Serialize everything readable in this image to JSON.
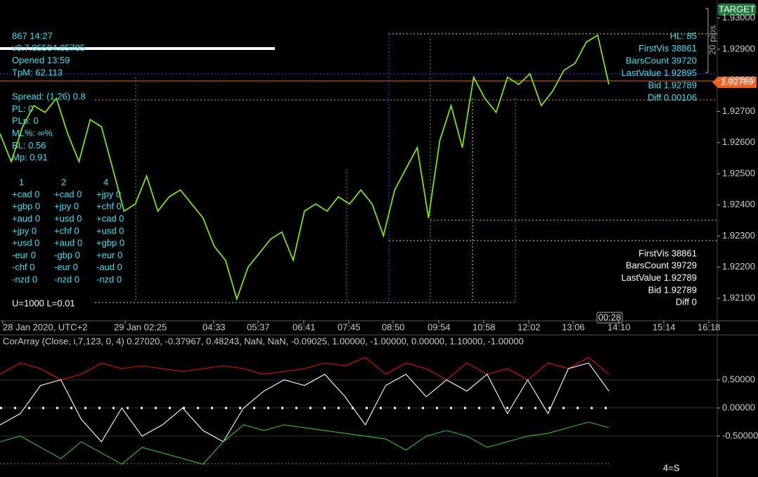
{
  "info_panel": [
    "867    14:27",
    "v0.7.05504.05785",
    "Opened 13:59",
    "TpM: 62.113",
    "Spread: (1.26) 0.8",
    "PL: 0",
    "PLp: 0",
    "ML%: ∞%",
    "BL: 0.56",
    "Mp: 0.91"
  ],
  "currency_columns": [
    {
      "header": "1",
      "items": [
        "+cad 0",
        "+gbp 0",
        "+aud 0",
        "+jpy 0",
        "+usd 0",
        "-eur 0",
        "-chf 0",
        "-nzd 0"
      ]
    },
    {
      "header": "2",
      "items": [
        "+cad 0",
        "+jpy 0",
        "+usd 0",
        "+chf 0",
        "+aud 0",
        "-gbp 0",
        "-eur 0",
        "-nzd 0"
      ]
    },
    {
      "header": "4",
      "items": [
        "+jpy 0",
        "+chf 0",
        "+cad 0",
        "+usd 0",
        "+gbp 0",
        "+eur 0",
        "-aud 0",
        "-nzd 0"
      ]
    }
  ],
  "footer_note": "U=1000 L=0.01",
  "stats_top": [
    "HL: 85",
    "FirstVis 38861",
    "BarsCount 39720",
    "LastValue 1.92895",
    "Bid 1.92789",
    "Diff 0.00106"
  ],
  "stats_bottom": [
    "FirstVis 38861",
    "BarsCount 39729",
    "LastValue 1.92789",
    "Bid 1.92789",
    "Diff 0"
  ],
  "target_label": "TARGET",
  "price_tag": "1.92789",
  "pips_label": "20 pips",
  "time_tag": "00:28",
  "corner_label": "4=S",
  "chart_data": [
    {
      "type": "line",
      "time_labels": [
        "28 Jan 2020, UTC+2",
        "29 Jan 02:25",
        "04:33",
        "05:37",
        "06:41",
        "07:45",
        "08:50",
        "09:54",
        "10:58",
        "12:02",
        "13:06",
        "14:10",
        "15:14",
        "16:18"
      ],
      "series": [
        {
          "name": "Close",
          "color": "#7fe01f",
          "values": [
            1.92629,
            1.92539,
            1.92651,
            1.92719,
            1.92697,
            1.92742,
            1.92629,
            1.92539,
            1.92674,
            1.92651,
            1.92516,
            1.9238,
            1.92403,
            1.92493,
            1.9238,
            1.92426,
            1.92448,
            1.92403,
            1.92358,
            1.92267,
            1.92222,
            1.92098,
            1.922,
            1.92245,
            1.9229,
            1.92313,
            1.92222,
            1.9238,
            1.92403,
            1.9238,
            1.92426,
            1.92403,
            1.92448,
            1.92403,
            1.92301,
            1.92448,
            1.92516,
            1.92584,
            1.92358,
            1.92606,
            1.92719,
            1.92584,
            1.9281,
            1.92742,
            1.92697,
            1.9281,
            1.92787,
            1.92821,
            1.92719,
            1.92765,
            1.92832,
            1.92855,
            1.92923,
            1.92945,
            1.92787
          ]
        }
      ],
      "ylim": [
        1.9203,
        1.9304
      ],
      "yticks": [
        {
          "value": 1.93,
          "label": "1.93000"
        },
        {
          "value": 1.929,
          "label": "1.92900"
        },
        {
          "value": 1.928,
          "label": "1.92800"
        },
        {
          "value": 1.927,
          "label": "1.92700"
        },
        {
          "value": 1.926,
          "label": "1.92600"
        },
        {
          "value": 1.925,
          "label": "1.92500"
        },
        {
          "value": 1.924,
          "label": "1.92400"
        },
        {
          "value": 1.923,
          "label": "1.92300"
        },
        {
          "value": 1.922,
          "label": "1.92200"
        },
        {
          "value": 1.921,
          "label": "1.92100"
        }
      ]
    },
    {
      "type": "line",
      "title": "CorArray (Close, i,7,123, 0, 4) 0.27020, -0.37967, 0.48243, NaN, NaN, -0.09025, 1.00000, -1.00000, 0.00000, 1.10000, -1.00000",
      "series": [
        {
          "color": "#e01010",
          "values": [
            0.6,
            0.8,
            0.7,
            0.5,
            0.6,
            0.8,
            0.7,
            0.75,
            0.7,
            0.65,
            0.7,
            0.75,
            0.7,
            0.6,
            0.65,
            0.7,
            0.8,
            0.75,
            0.9,
            0.6,
            0.8,
            0.7,
            0.5,
            0.8,
            0.6,
            0.7,
            0.5,
            0.8,
            0.7,
            0.9,
            0.6
          ]
        },
        {
          "color": "#ffffff",
          "values": [
            -0.3,
            -0.1,
            0.4,
            0.5,
            -0.2,
            -0.6,
            0.0,
            -0.5,
            -0.3,
            0.0,
            -0.4,
            -0.6,
            0.0,
            0.3,
            0.5,
            0.4,
            0.6,
            0.2,
            -0.3,
            0.4,
            0.6,
            0.2,
            0.5,
            0.3,
            0.6,
            -0.1,
            0.5,
            -0.1,
            0.7,
            0.8,
            0.3
          ]
        },
        {
          "color": "#30c030",
          "values": [
            -0.6,
            -0.5,
            -0.7,
            -0.9,
            -0.6,
            -0.8,
            -1.0,
            -0.7,
            -0.8,
            -0.9,
            -1.0,
            -0.6,
            -0.3,
            -0.4,
            -0.3,
            -0.35,
            -0.4,
            -0.45,
            -0.5,
            -0.55,
            -0.75,
            -0.5,
            -0.4,
            -0.5,
            -0.7,
            -0.6,
            -0.5,
            -0.45,
            -0.35,
            -0.25,
            -0.35
          ]
        }
      ],
      "ylim": [
        -1.19,
        1.1
      ],
      "yticks": [
        {
          "value": 0.5,
          "label": "0.50000"
        },
        {
          "value": 0,
          "label": "0.00000"
        },
        {
          "value": -0.5,
          "label": "-0.50000"
        }
      ]
    }
  ]
}
